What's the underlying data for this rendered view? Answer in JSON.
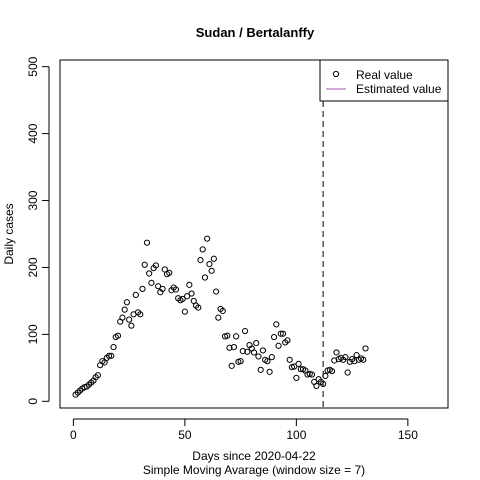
{
  "chart_data": {
    "type": "scatter",
    "title": "Sudan / Bertalanffy",
    "xlabel": "Days since 2020-04-22",
    "xlabel_sub": "Simple Moving Avarage (window size = 7)",
    "ylabel": "Daily cases",
    "xlim": [
      -6,
      168
    ],
    "ylim": [
      -10,
      510
    ],
    "x_ticks": [
      0,
      50,
      100,
      150
    ],
    "y_ticks": [
      0,
      100,
      200,
      300,
      400,
      500
    ],
    "vline_x": 112,
    "legend": {
      "position": "top-right",
      "entries": [
        {
          "label": "Real value",
          "marker": "circle"
        },
        {
          "label": "Estimated value",
          "marker": "line",
          "color": "#9b59b6"
        }
      ]
    },
    "series": [
      {
        "name": "Real value",
        "points": [
          [
            1,
            10
          ],
          [
            2,
            13
          ],
          [
            3,
            16
          ],
          [
            4,
            19
          ],
          [
            5,
            21
          ],
          [
            6,
            22
          ],
          [
            7,
            25
          ],
          [
            8,
            28
          ],
          [
            9,
            31
          ],
          [
            10,
            36
          ],
          [
            11,
            39
          ],
          [
            12,
            54
          ],
          [
            13,
            60
          ],
          [
            14,
            58
          ],
          [
            15,
            65
          ],
          [
            16,
            68
          ],
          [
            17,
            68
          ],
          [
            18,
            81
          ],
          [
            19,
            96
          ],
          [
            20,
            98
          ],
          [
            21,
            119
          ],
          [
            22,
            125
          ],
          [
            23,
            137
          ],
          [
            24,
            148
          ],
          [
            25,
            122
          ],
          [
            26,
            113
          ],
          [
            27,
            130
          ],
          [
            28,
            159
          ],
          [
            29,
            133
          ],
          [
            30,
            130
          ],
          [
            31,
            168
          ],
          [
            32,
            204
          ],
          [
            33,
            237
          ],
          [
            34,
            191
          ],
          [
            35,
            177
          ],
          [
            36,
            199
          ],
          [
            37,
            203
          ],
          [
            38,
            172
          ],
          [
            39,
            163
          ],
          [
            40,
            168
          ],
          [
            41,
            197
          ],
          [
            42,
            190
          ],
          [
            43,
            192
          ],
          [
            44,
            166
          ],
          [
            45,
            170
          ],
          [
            46,
            167
          ],
          [
            47,
            154
          ],
          [
            48,
            151
          ],
          [
            49,
            153
          ],
          [
            50,
            134
          ],
          [
            51,
            157
          ],
          [
            52,
            174
          ],
          [
            53,
            161
          ],
          [
            54,
            150
          ],
          [
            55,
            143
          ],
          [
            56,
            140
          ],
          [
            57,
            211
          ],
          [
            58,
            227
          ],
          [
            59,
            185
          ],
          [
            60,
            243
          ],
          [
            61,
            205
          ],
          [
            62,
            195
          ],
          [
            63,
            213
          ],
          [
            64,
            164
          ],
          [
            65,
            125
          ],
          [
            66,
            138
          ],
          [
            67,
            135
          ],
          [
            68,
            97
          ],
          [
            69,
            98
          ],
          [
            70,
            80
          ],
          [
            71,
            53
          ],
          [
            72,
            81
          ],
          [
            73,
            97
          ],
          [
            74,
            59
          ],
          [
            75,
            60
          ],
          [
            76,
            75
          ],
          [
            77,
            105
          ],
          [
            78,
            74
          ],
          [
            79,
            84
          ],
          [
            80,
            79
          ],
          [
            81,
            73
          ],
          [
            82,
            87
          ],
          [
            83,
            67
          ],
          [
            84,
            47
          ],
          [
            85,
            76
          ],
          [
            86,
            62
          ],
          [
            87,
            60
          ],
          [
            88,
            44
          ],
          [
            89,
            66
          ],
          [
            90,
            96
          ],
          [
            91,
            115
          ],
          [
            92,
            83
          ],
          [
            93,
            101
          ],
          [
            94,
            101
          ],
          [
            95,
            88
          ],
          [
            96,
            91
          ],
          [
            97,
            62
          ],
          [
            98,
            51
          ],
          [
            99,
            52
          ],
          [
            100,
            35
          ],
          [
            101,
            56
          ],
          [
            102,
            48
          ],
          [
            103,
            48
          ],
          [
            104,
            46
          ],
          [
            105,
            40
          ],
          [
            106,
            41
          ],
          [
            107,
            40
          ],
          [
            108,
            29
          ],
          [
            109,
            23
          ],
          [
            110,
            33
          ],
          [
            111,
            29
          ],
          [
            112,
            26
          ],
          [
            113,
            38
          ],
          [
            114,
            46
          ],
          [
            115,
            47
          ],
          [
            116,
            45
          ],
          [
            117,
            61
          ],
          [
            118,
            73
          ],
          [
            119,
            63
          ],
          [
            120,
            65
          ],
          [
            121,
            62
          ],
          [
            122,
            66
          ],
          [
            123,
            43
          ],
          [
            124,
            59
          ],
          [
            125,
            63
          ],
          [
            126,
            60
          ],
          [
            127,
            69
          ],
          [
            128,
            62
          ],
          [
            129,
            64
          ],
          [
            130,
            62
          ],
          [
            131,
            79
          ]
        ]
      }
    ]
  }
}
